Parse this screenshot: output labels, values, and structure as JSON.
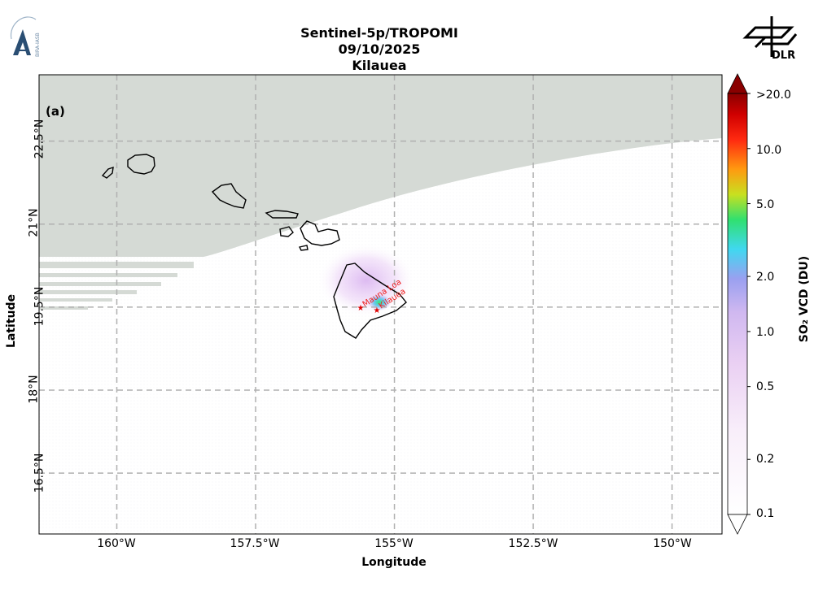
{
  "header": {
    "title_line1": "Sentinel-5p/TROPOMI",
    "title_line2": "09/10/2025",
    "title_line3": "Kilauea"
  },
  "logos": {
    "left": "BIRA-IASB",
    "right": "DLR"
  },
  "map": {
    "panel_label": "(a)",
    "xlabel": "Longitude",
    "ylabel": "Latitude",
    "x_ticks": [
      "160°W",
      "157.5°W",
      "155°W",
      "152.5°W",
      "150°W"
    ],
    "y_ticks": [
      "22.5°N",
      "21°N",
      "19.5°N",
      "18°N",
      "16.5°N"
    ],
    "lon_range": [
      -161.4,
      -149.1
    ],
    "lat_range": [
      15.4,
      23.7
    ],
    "volcanoes": [
      {
        "name": "Mauna Loa",
        "lon": -155.6,
        "lat": 19.48
      },
      {
        "name": "Kilauea",
        "lon": -155.28,
        "lat": 19.42
      }
    ],
    "colors": {
      "no_data": "#d5dad5",
      "grid": "#b0b0b0",
      "coast": "#000000",
      "marker": "#dd0000"
    }
  },
  "colorbar": {
    "title": "SO₂ VCD (DU)",
    "ticks": [
      ">20.0",
      "10.0",
      "5.0",
      "2.0",
      "1.0",
      "0.5",
      "0.2",
      "0.1"
    ],
    "scale": "log",
    "range": [
      0.1,
      20.0
    ],
    "extend": "both"
  }
}
